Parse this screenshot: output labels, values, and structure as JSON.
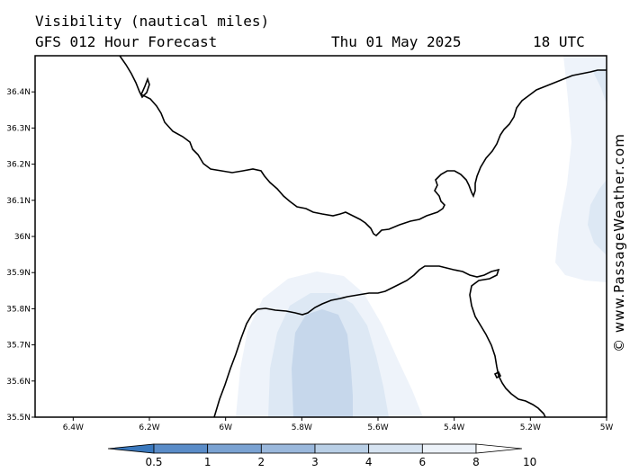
{
  "header": {
    "title": "Visibility (nautical miles)",
    "subtitle": "GFS 012 Hour Forecast",
    "date": "Thu 01 May 2025",
    "time": "18 UTC"
  },
  "watermark": "© www.PassageWeather.com",
  "map": {
    "lon_range": [
      -6.5,
      -5.0
    ],
    "lat_range": [
      35.5,
      36.5
    ],
    "lat_ticks": [
      "36.4N",
      "36.3N",
      "36.2N",
      "36.1N",
      "36N",
      "35.9N",
      "35.8N",
      "35.7N",
      "35.6N",
      "35.5N"
    ],
    "lon_ticks": [
      "6.4W",
      "6.2W",
      "6W",
      "5.8W",
      "5.6W",
      "5.4W",
      "5.2W",
      "5W"
    ],
    "coastline_color": "#000000"
  },
  "colorbar": {
    "labels": [
      "0.5",
      "1",
      "2",
      "3",
      "4",
      "6",
      "8",
      "10"
    ],
    "colors": [
      "#3a78bd",
      "#5a8cc8",
      "#7aa2d2",
      "#9ab8dc",
      "#b9cfe6",
      "#d6e3f1",
      "#ecf2f9",
      "#ffffff"
    ]
  }
}
